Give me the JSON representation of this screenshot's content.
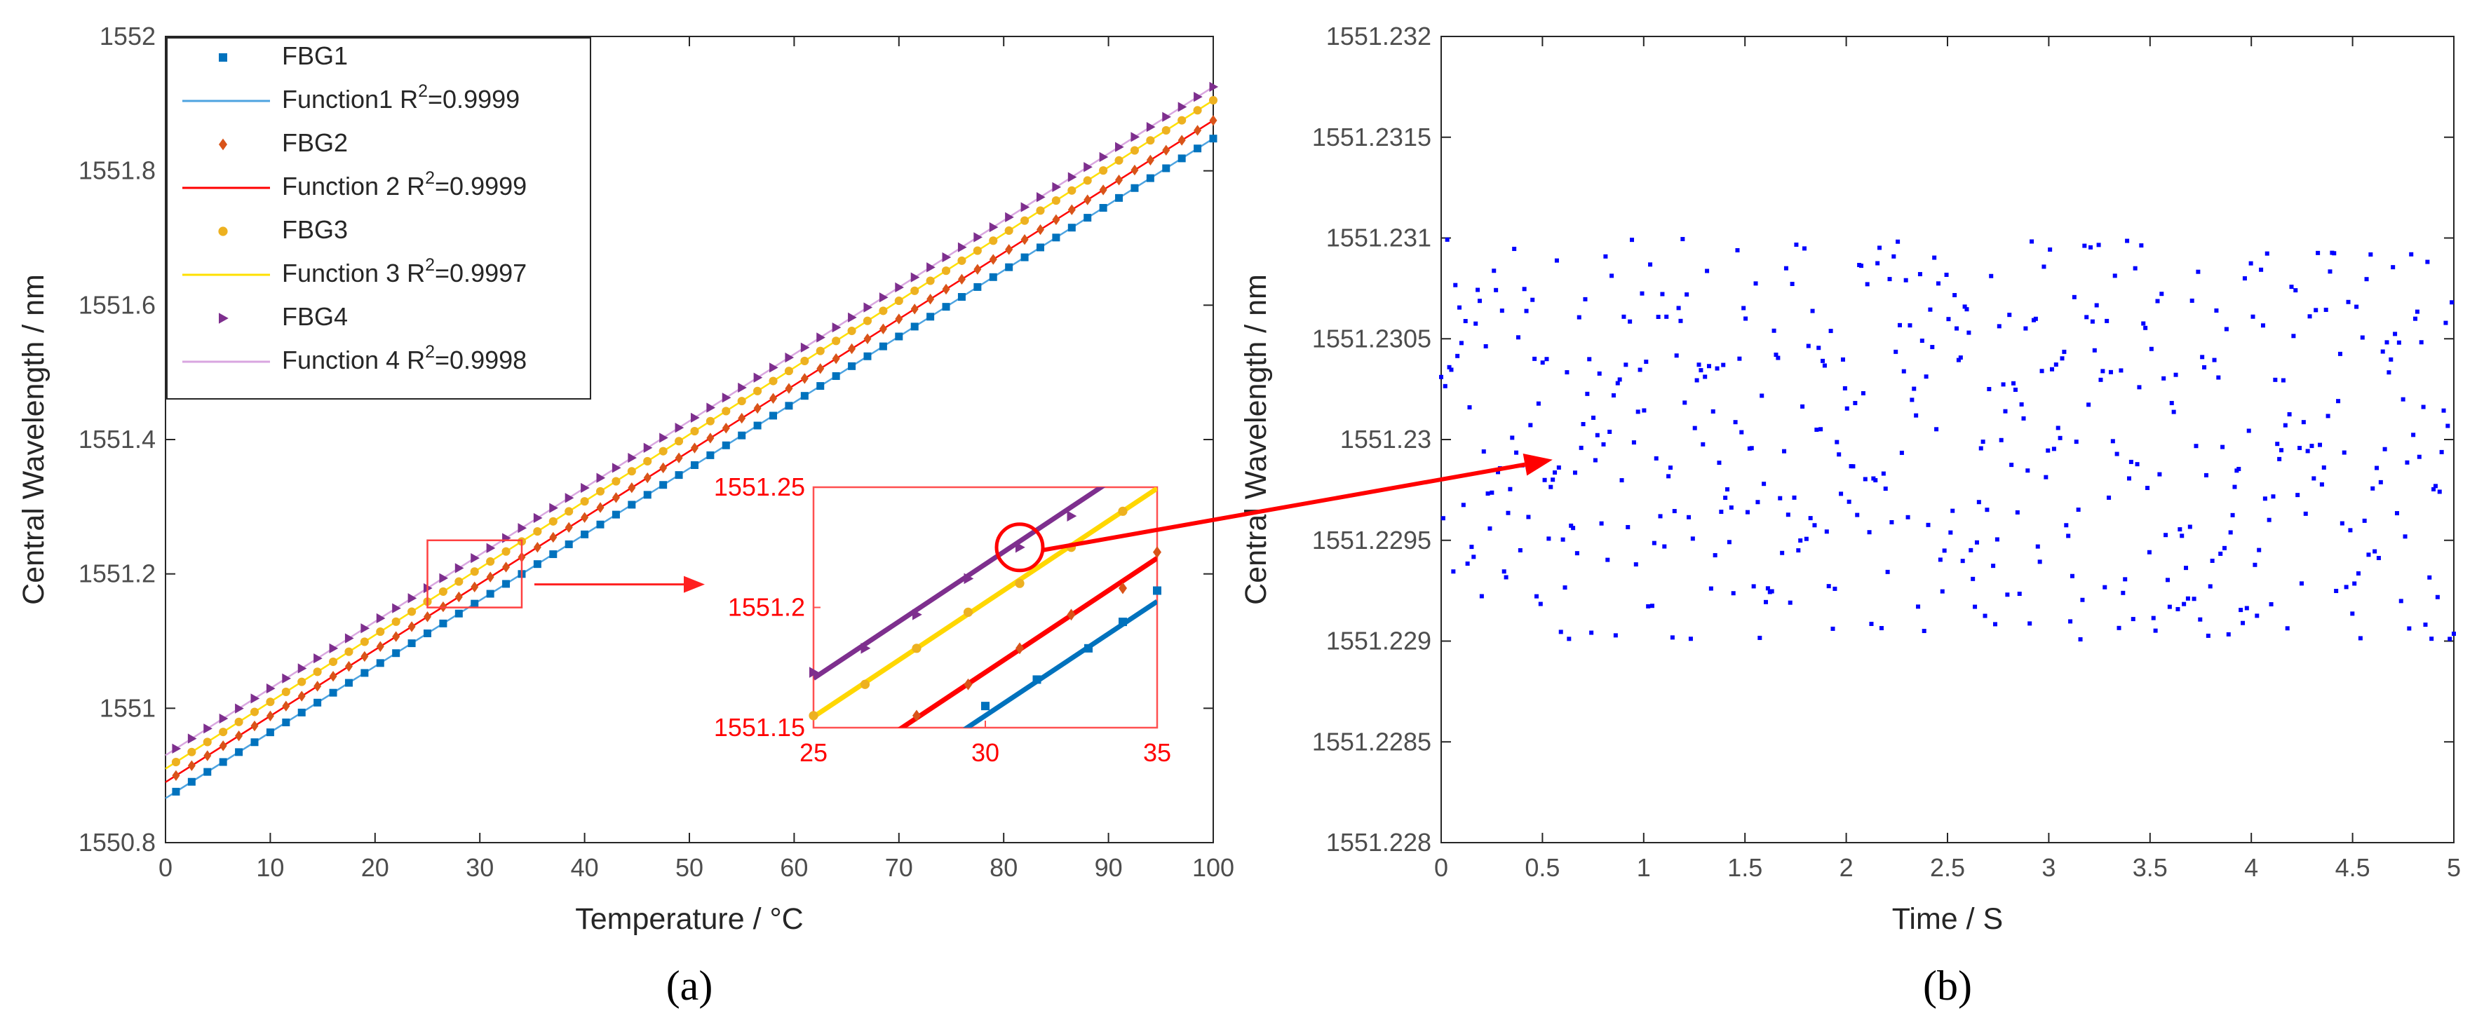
{
  "colors": {
    "fbg1": "#0072BD",
    "fbg2": "#D95319",
    "fbg3": "#EDB120",
    "fbg4": "#7E2F8E",
    "function1": "#4DA3E0",
    "function2": "#FF0000",
    "function3": "#FFE000",
    "function4": "#D9A6E0",
    "inset_fit1": "#0072BD",
    "inset_fit2": "#FF0000",
    "inset_fit3": "#FFD700",
    "inset_fit4": "#7E2F8E",
    "highlight": "#FF0000",
    "scatter_b": "#0000FF"
  },
  "panels": {
    "a_label": "(a)",
    "b_label": "(b)",
    "a_letter": "a",
    "b_letter": "b"
  },
  "chart_data": [
    {
      "id": "a",
      "type": "scatter",
      "xlabel": "Temperature / °C",
      "ylabel": "Central Wavelength / nm",
      "xlim": [
        0,
        100
      ],
      "ylim": [
        1550.8,
        1552
      ],
      "xticks": [
        0,
        10,
        20,
        30,
        40,
        50,
        60,
        70,
        80,
        90,
        100
      ],
      "yticks": [
        1550.8,
        1551,
        1551.2,
        1551.4,
        1551.6,
        1551.8,
        1552
      ],
      "ytick_labels": [
        "1550.8",
        "1551",
        "1551.2",
        "1551.4",
        "1551.6",
        "1551.8",
        "1552"
      ],
      "x_step": 1.5,
      "series": [
        {
          "name": "FBG1",
          "marker": "square",
          "slope": 0.00982,
          "intercept": 1550.866,
          "color_key": "fbg1"
        },
        {
          "name": "FBG2",
          "marker": "diamond",
          "slope": 0.00985,
          "intercept": 1550.89,
          "color_key": "fbg2"
        },
        {
          "name": "FBG3",
          "marker": "circle",
          "slope": 0.00995,
          "intercept": 1550.91,
          "color_key": "fbg3"
        },
        {
          "name": "FBG4",
          "marker": "triangle-right",
          "slope": 0.00995,
          "intercept": 1550.93,
          "color_key": "fbg4"
        }
      ],
      "fits": [
        {
          "name": "Function1",
          "r2_prefix": "R",
          "r2_sup": "2",
          "r2_value": "=0.9999",
          "color_key": "function1"
        },
        {
          "name": "Function 2",
          "r2_prefix": "R",
          "r2_sup": "2",
          "r2_value": "=0.9999",
          "color_key": "function2"
        },
        {
          "name": "Function 3",
          "r2_prefix": "R",
          "r2_sup": "2",
          "r2_value": "=0.9997",
          "color_key": "function3"
        },
        {
          "name": "Function 4",
          "r2_prefix": "R",
          "r2_sup": "2",
          "r2_value": "=0.9998",
          "color_key": "function4"
        }
      ],
      "legend_position": "top-left",
      "zoom_box": {
        "xlim": [
          25,
          34
        ],
        "ylim": [
          1551.15,
          1551.25
        ]
      },
      "inset": {
        "xlim": [
          25,
          35
        ],
        "ylim": [
          1551.15,
          1551.25
        ],
        "xticks": [
          "25",
          "30",
          "35"
        ],
        "yticks": [
          "1551.25",
          "1551.2",
          "1551.15"
        ],
        "ytick_values": [
          1551.25,
          1551.2,
          1551.15
        ],
        "xtick_values": [
          25,
          30,
          35
        ],
        "lines": [
          {
            "name": "FBG4 fit",
            "slope": 0.0095,
            "intercept": 1550.933,
            "color_key": "inset_fit4"
          },
          {
            "name": "FBG3 fit",
            "slope": 0.0095,
            "intercept": 1550.917,
            "color_key": "inset_fit3"
          },
          {
            "name": "FBG2 fit",
            "slope": 0.0095,
            "intercept": 1550.888,
            "color_key": "inset_fit2"
          },
          {
            "name": "FBG1 fit",
            "slope": 0.0095,
            "intercept": 1550.87,
            "color_key": "inset_fit1"
          }
        ],
        "points": [
          {
            "series": "FBG4",
            "x": [
              25,
              26.5,
              28,
              29.5,
              31,
              32.5
            ],
            "y": [
              1551.173,
              1551.183,
              1551.197,
              1551.212,
              1551.225,
              1551.238
            ],
            "color_key": "fbg4"
          },
          {
            "series": "FBG3",
            "x": [
              25,
              26.5,
              28,
              29.5,
              31,
              32.5,
              34
            ],
            "y": [
              1551.155,
              1551.168,
              1551.183,
              1551.198,
              1551.21,
              1551.225,
              1551.24
            ],
            "color_key": "fbg3"
          },
          {
            "series": "FBG2",
            "x": [
              28,
              29.5,
              31,
              32.5,
              34,
              35
            ],
            "y": [
              1551.155,
              1551.168,
              1551.183,
              1551.197,
              1551.208,
              1551.223
            ],
            "color_key": "fbg2"
          },
          {
            "series": "FBG1",
            "x": [
              30,
              31.5,
              33,
              34,
              35
            ],
            "y": [
              1551.159,
              1551.17,
              1551.183,
              1551.194,
              1551.207
            ],
            "color_key": "fbg1"
          }
        ],
        "highlight_point": {
          "x": 31,
          "y": 1551.225
        }
      }
    },
    {
      "id": "b",
      "type": "scatter",
      "xlabel": "Time / S",
      "ylabel": "Central Wavelength / nm",
      "xlim": [
        0,
        5
      ],
      "ylim": [
        1551.228,
        1551.232
      ],
      "xticks": [
        0,
        0.5,
        1,
        1.5,
        2,
        2.5,
        3,
        3.5,
        4,
        4.5,
        5
      ],
      "xtick_labels": [
        "0",
        "0.5",
        "1",
        "1.5",
        "2",
        "2.5",
        "3",
        "3.5",
        "4",
        "4.5",
        "5"
      ],
      "yticks": [
        1551.228,
        1551.2285,
        1551.229,
        1551.2295,
        1551.23,
        1551.2305,
        1551.231,
        1551.2315,
        1551.232
      ],
      "ytick_labels": [
        "1551.228",
        "1551.2285",
        "1551.229",
        "1551.2295",
        "1551.23",
        "1551.2305",
        "1551.231",
        "1551.2315",
        "1551.232"
      ],
      "series": [
        {
          "name": "Central wavelength",
          "n_points": 500,
          "t_start": 0,
          "t_end": 5,
          "y_min": 1551.229,
          "y_max": 1551.231,
          "distribution": "uniform random",
          "color_key": "scatter_b"
        }
      ]
    }
  ]
}
